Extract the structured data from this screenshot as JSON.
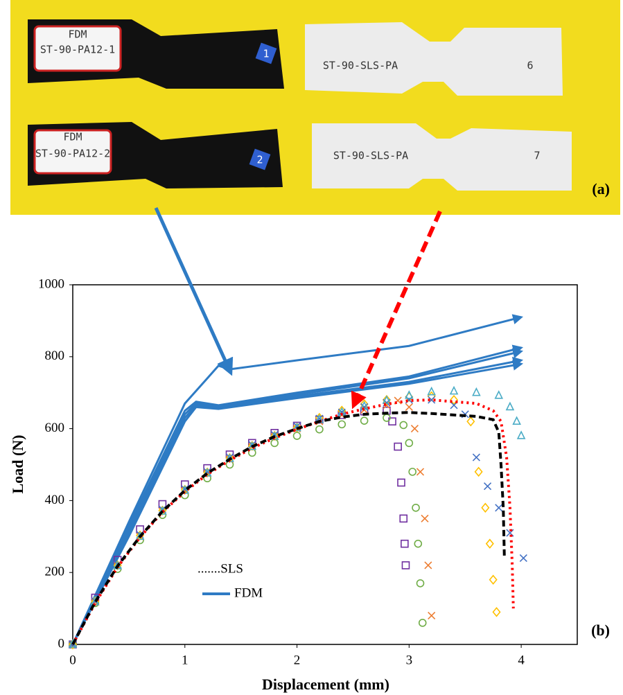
{
  "photo": {
    "labels": [
      "FDM",
      "ST-90-PA12-1",
      "1",
      "ST-90-SLS-PA",
      "6",
      "FDM",
      "ST-90-PA12-2",
      "2",
      "ST-90-SLS-PA",
      "7"
    ],
    "panel_label": "(a)"
  },
  "chart_data": {
    "type": "line",
    "panel_label": "(b)",
    "x_label": "Displacement (mm)",
    "y_label": "Load (N)",
    "xlim": [
      0,
      4.5
    ],
    "xticks": [
      0,
      1,
      2,
      3,
      4
    ],
    "ylim": [
      0,
      1000
    ],
    "yticks": [
      0,
      200,
      400,
      600,
      800,
      1000
    ],
    "legend": [
      ".......SLS",
      "FDM"
    ],
    "series": [
      {
        "color": "#2e7bc4",
        "style": "arrow",
        "x": [
          0,
          0.5,
          1.0,
          1.2,
          1.3,
          1.4,
          2,
          3,
          4
        ],
        "values": [
          0,
          340,
          670,
          740,
          775,
          765,
          790,
          830,
          910
        ]
      },
      {
        "color": "#2e7bc4",
        "style": "arrow",
        "x": [
          0,
          0.5,
          1.0,
          1.1,
          1.3,
          2,
          3,
          4
        ],
        "values": [
          0,
          330,
          650,
          675,
          665,
          700,
          745,
          825
        ]
      },
      {
        "color": "#2e7bc4",
        "style": "arrow",
        "x": [
          0,
          0.5,
          1.0,
          1.1,
          1.3,
          2,
          3,
          4
        ],
        "values": [
          0,
          320,
          640,
          670,
          660,
          695,
          740,
          815
        ]
      },
      {
        "color": "#2e7bc4",
        "style": "arrow",
        "x": [
          0,
          0.5,
          1.0,
          1.1,
          1.3,
          2,
          3,
          4
        ],
        "values": [
          0,
          310,
          630,
          665,
          660,
          690,
          730,
          790
        ]
      },
      {
        "color": "#2e7bc4",
        "style": "arrow",
        "x": [
          0,
          0.5,
          1.0,
          1.1,
          1.3,
          2,
          3,
          4
        ],
        "values": [
          0,
          300,
          620,
          660,
          655,
          685,
          725,
          780
        ]
      },
      {
        "color": "#7030a0",
        "style": "square",
        "x": [
          0,
          0.2,
          0.4,
          0.6,
          0.8,
          1.0,
          1.2,
          1.4,
          1.6,
          1.8,
          2.0,
          2.2,
          2.4,
          2.6,
          2.8,
          2.85,
          2.9,
          2.93,
          2.95,
          2.96,
          2.97
        ],
        "values": [
          0,
          130,
          235,
          320,
          390,
          445,
          490,
          528,
          560,
          588,
          608,
          625,
          638,
          648,
          650,
          620,
          550,
          450,
          350,
          280,
          220
        ]
      },
      {
        "color": "#70ad47",
        "style": "circle",
        "x": [
          0,
          0.2,
          0.4,
          0.6,
          0.8,
          1.0,
          1.2,
          1.4,
          1.6,
          1.8,
          2.0,
          2.2,
          2.4,
          2.6,
          2.8,
          2.95,
          3.0,
          3.03,
          3.06,
          3.08,
          3.1,
          3.12
        ],
        "values": [
          0,
          115,
          210,
          290,
          360,
          415,
          462,
          500,
          533,
          560,
          580,
          598,
          612,
          622,
          630,
          610,
          560,
          480,
          380,
          280,
          170,
          60
        ]
      },
      {
        "color": "#ed7d31",
        "style": "x",
        "x": [
          0,
          0.2,
          0.4,
          0.6,
          0.8,
          1.0,
          1.2,
          1.4,
          1.6,
          1.8,
          2.0,
          2.2,
          2.4,
          2.6,
          2.8,
          2.9,
          3.0,
          3.05,
          3.1,
          3.14,
          3.17,
          3.2
        ],
        "values": [
          0,
          118,
          218,
          300,
          370,
          428,
          476,
          515,
          550,
          578,
          600,
          620,
          638,
          652,
          665,
          678,
          660,
          600,
          480,
          350,
          220,
          80
        ]
      },
      {
        "color": "#ffc000",
        "style": "diamond",
        "x": [
          0,
          0.2,
          0.4,
          0.6,
          0.8,
          1.0,
          1.2,
          1.4,
          1.6,
          1.8,
          2.0,
          2.2,
          2.4,
          2.6,
          2.8,
          3.0,
          3.2,
          3.4,
          3.55,
          3.62,
          3.68,
          3.72,
          3.75,
          3.78
        ],
        "values": [
          0,
          120,
          220,
          303,
          372,
          430,
          478,
          518,
          552,
          580,
          603,
          630,
          650,
          668,
          680,
          688,
          690,
          680,
          620,
          480,
          380,
          280,
          180,
          90
        ]
      },
      {
        "color": "#4472c4",
        "style": "x",
        "x": [
          0,
          0.2,
          0.4,
          0.6,
          0.8,
          1.0,
          1.2,
          1.4,
          1.6,
          1.8,
          2.0,
          2.2,
          2.4,
          2.6,
          2.8,
          3.0,
          3.2,
          3.4,
          3.5,
          3.6,
          3.7,
          3.8,
          3.9,
          4.02
        ],
        "values": [
          0,
          120,
          222,
          305,
          375,
          432,
          480,
          520,
          555,
          583,
          607,
          628,
          645,
          660,
          672,
          680,
          680,
          665,
          640,
          520,
          440,
          380,
          310,
          240
        ]
      },
      {
        "color": "#4bacc6",
        "style": "triangle",
        "x": [
          0,
          0.2,
          0.4,
          0.6,
          0.8,
          1.0,
          1.2,
          1.4,
          1.6,
          1.8,
          2.0,
          2.2,
          2.4,
          2.6,
          2.8,
          3.0,
          3.2,
          3.4,
          3.6,
          3.8,
          3.9,
          3.96,
          4.0
        ],
        "values": [
          0,
          118,
          218,
          300,
          370,
          428,
          476,
          516,
          550,
          578,
          602,
          625,
          645,
          662,
          678,
          692,
          702,
          704,
          700,
          692,
          660,
          620,
          580
        ]
      },
      {
        "color": "#ff0000",
        "style": "dotted",
        "x": [
          0,
          0.2,
          0.4,
          0.6,
          0.8,
          1.0,
          1.2,
          1.4,
          1.6,
          1.8,
          2.0,
          2.2,
          2.4,
          2.6,
          2.8,
          3.0,
          3.2,
          3.4,
          3.6,
          3.75,
          3.82,
          3.87,
          3.9,
          3.92,
          3.93
        ],
        "values": [
          0,
          115,
          215,
          298,
          368,
          425,
          473,
          512,
          546,
          574,
          598,
          620,
          640,
          655,
          668,
          678,
          680,
          675,
          670,
          650,
          620,
          520,
          380,
          220,
          100
        ]
      },
      {
        "color": "#000000",
        "style": "dashed",
        "x": [
          0,
          0.2,
          0.4,
          0.6,
          0.8,
          1.0,
          1.2,
          1.4,
          1.6,
          1.8,
          2.0,
          2.2,
          2.4,
          2.6,
          2.8,
          3.0,
          3.2,
          3.4,
          3.6,
          3.75,
          3.8,
          3.82,
          3.84,
          3.85
        ],
        "values": [
          0,
          118,
          218,
          300,
          370,
          428,
          476,
          515,
          550,
          578,
          600,
          620,
          632,
          640,
          643,
          645,
          642,
          638,
          634,
          625,
          590,
          500,
          380,
          240
        ]
      }
    ]
  }
}
